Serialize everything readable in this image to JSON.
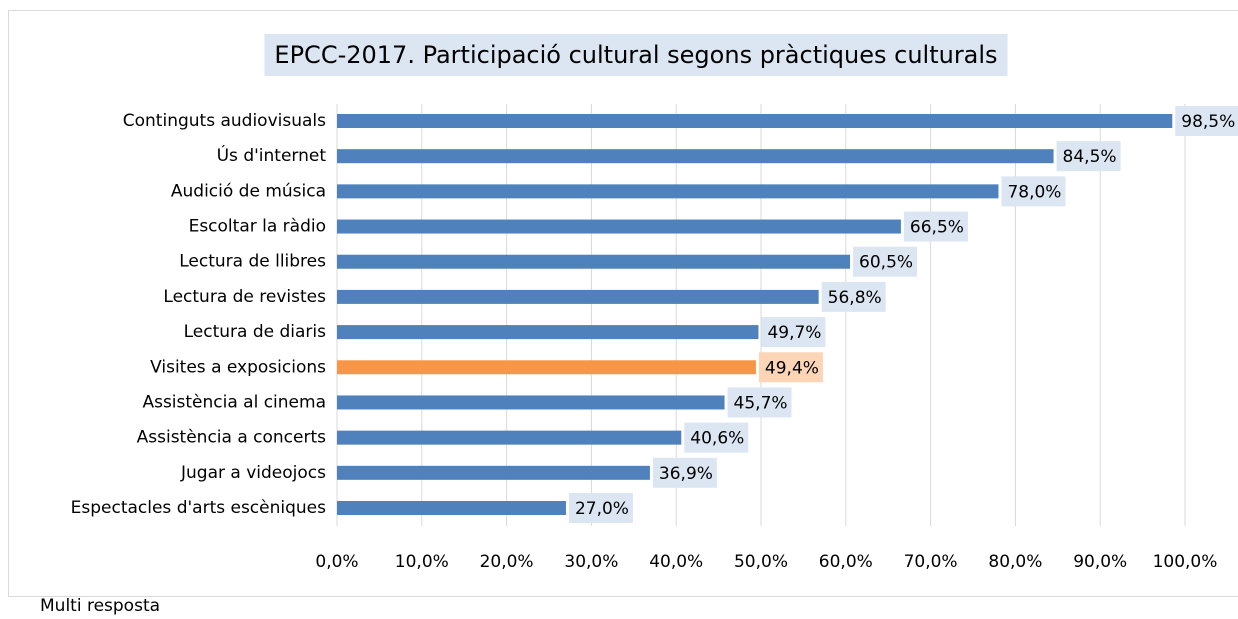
{
  "chart_data": {
    "type": "barh",
    "title": "EPCC-2017. Participació cultural segons pràctiques culturals",
    "categories": [
      "Continguts audiovisuals",
      "Ús d'internet",
      "Audició de música",
      "Escoltar la ràdio",
      "Lectura de llibres",
      "Lectura de revistes",
      "Lectura de diaris",
      "Visites a exposicions",
      "Assistència al cinema",
      "Assistència a concerts",
      "Jugar a videojocs",
      "Espectacles d'arts escèniques"
    ],
    "values": [
      98.5,
      84.5,
      78.0,
      66.5,
      60.5,
      56.8,
      49.7,
      49.4,
      45.7,
      40.6,
      36.9,
      27.0
    ],
    "value_labels": [
      "98,5%",
      "84,5%",
      "78,0%",
      "66,5%",
      "60,5%",
      "56,8%",
      "49,7%",
      "49,4%",
      "45,7%",
      "40,6%",
      "36,9%",
      "27,0%"
    ],
    "colors": [
      "#4f81bd",
      "#4f81bd",
      "#4f81bd",
      "#4f81bd",
      "#4f81bd",
      "#4f81bd",
      "#4f81bd",
      "#f79646",
      "#4f81bd",
      "#4f81bd",
      "#4f81bd",
      "#4f81bd"
    ],
    "label_colors": [
      "#dce6f2",
      "#dce6f2",
      "#dce6f2",
      "#dce6f2",
      "#dce6f2",
      "#dce6f2",
      "#dce6f2",
      "#fbd5b5",
      "#dce6f2",
      "#dce6f2",
      "#dce6f2",
      "#dce6f2"
    ],
    "xlim": [
      0,
      100
    ],
    "xticks": [
      {
        "value": 0,
        "label": "0,0%"
      },
      {
        "value": 10,
        "label": "10,0%"
      },
      {
        "value": 20,
        "label": "20,0%"
      },
      {
        "value": 30,
        "label": "30,0%"
      },
      {
        "value": 40,
        "label": "40,0%"
      },
      {
        "value": 50,
        "label": "50,0%"
      },
      {
        "value": 60,
        "label": "60,0%"
      },
      {
        "value": 70,
        "label": "70,0%"
      },
      {
        "value": 80,
        "label": "80,0%"
      },
      {
        "value": 90,
        "label": "90,0%"
      },
      {
        "value": 100,
        "label": "100,0%"
      }
    ],
    "grid": true,
    "note": "Multi resposta"
  }
}
